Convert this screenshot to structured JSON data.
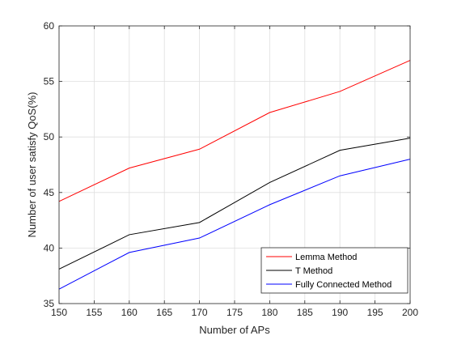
{
  "chart_data": {
    "type": "line",
    "title": "",
    "xlabel": "Number of APs",
    "ylabel": "Number of user satisfy QoS(%)",
    "xlim": [
      150,
      200
    ],
    "ylim": [
      35,
      60
    ],
    "xticks": [
      150,
      155,
      160,
      165,
      170,
      175,
      180,
      185,
      190,
      195,
      200
    ],
    "yticks": [
      35,
      40,
      45,
      50,
      55,
      60
    ],
    "grid": true,
    "legend_position": "bottom-right",
    "x": [
      150,
      160,
      170,
      180,
      190,
      200
    ],
    "series": [
      {
        "name": "Lemma Method",
        "color": "#ff0000",
        "values": [
          44.2,
          47.2,
          48.9,
          52.2,
          54.1,
          56.9
        ]
      },
      {
        "name": "T Method",
        "color": "#000000",
        "values": [
          38.1,
          41.2,
          42.3,
          45.9,
          48.8,
          49.9
        ]
      },
      {
        "name": "Fully Connected Method",
        "color": "#0000ff",
        "values": [
          36.3,
          39.6,
          40.9,
          43.9,
          46.5,
          48.0
        ]
      }
    ]
  }
}
